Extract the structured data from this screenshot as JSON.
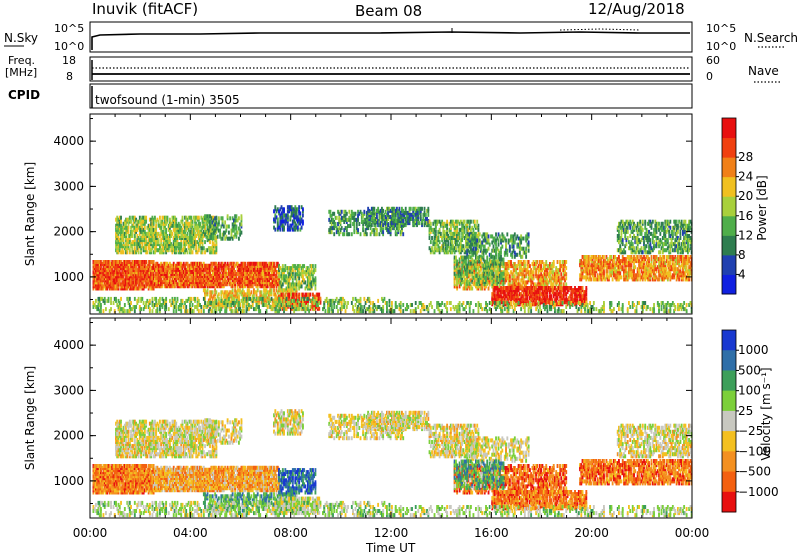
{
  "header": {
    "left": "Inuvik (fitACF)",
    "center": "Beam 08",
    "right": "12/Aug/2018"
  },
  "aux_panels": {
    "nsky": {
      "label": "N.Sky",
      "left_ticks": [
        "10^5",
        "10^0"
      ],
      "right_ticks": [
        "10^5",
        "10^0"
      ],
      "right_label": "N.Search"
    },
    "freq": {
      "label_top": "Freq.",
      "label_bottom": "[MHz]",
      "left_ticks": [
        "18",
        "8"
      ],
      "right_ticks": [
        "60",
        "0"
      ],
      "right_label": "Nave"
    },
    "cpid": {
      "label": "CPID",
      "text": "twofsound (1-min) 3505"
    }
  },
  "chart_data": [
    {
      "type": "heatmap",
      "name": "power",
      "ylabel": "Slant Range [km]",
      "yticks": [
        "1000",
        "2000",
        "3000",
        "4000"
      ],
      "ytick_values": [
        1000,
        2000,
        3000,
        4000
      ],
      "ylim": [
        180,
        4600
      ],
      "xlim": [
        "00:00",
        "24:00"
      ],
      "colorbar": {
        "label": "Power [dB]",
        "ticks": [
          "4",
          "8",
          "12",
          "16",
          "20",
          "24",
          "28"
        ],
        "colors": [
          "#1020e0",
          "#2040b0",
          "#2e7d4f",
          "#4fae4a",
          "#a8d03c",
          "#f0c020",
          "#f08018",
          "#f04010",
          "#e81010"
        ]
      }
    },
    {
      "type": "heatmap",
      "name": "velocity",
      "ylabel": "Slant Range [km]",
      "yticks": [
        "1000",
        "2000",
        "3000",
        "4000"
      ],
      "ytick_values": [
        1000,
        2000,
        3000,
        4000
      ],
      "ylim": [
        180,
        4600
      ],
      "xlim": [
        "00:00",
        "24:00"
      ],
      "xlabel": "Time UT",
      "xticks": [
        "00:00",
        "04:00",
        "08:00",
        "12:00",
        "16:00",
        "20:00",
        "00:00"
      ],
      "colorbar": {
        "label": "Velocity [m s⁻¹]",
        "ticks": [
          "1000",
          "500",
          "100",
          "25",
          "−25",
          "−100",
          "−500",
          "−1000"
        ],
        "colors": [
          "#1838d0",
          "#2f6fa8",
          "#3d9f5a",
          "#7ccf3a",
          "#c8c8c0",
          "#f4c020",
          "#f49020",
          "#f46010",
          "#e81010"
        ]
      }
    }
  ]
}
